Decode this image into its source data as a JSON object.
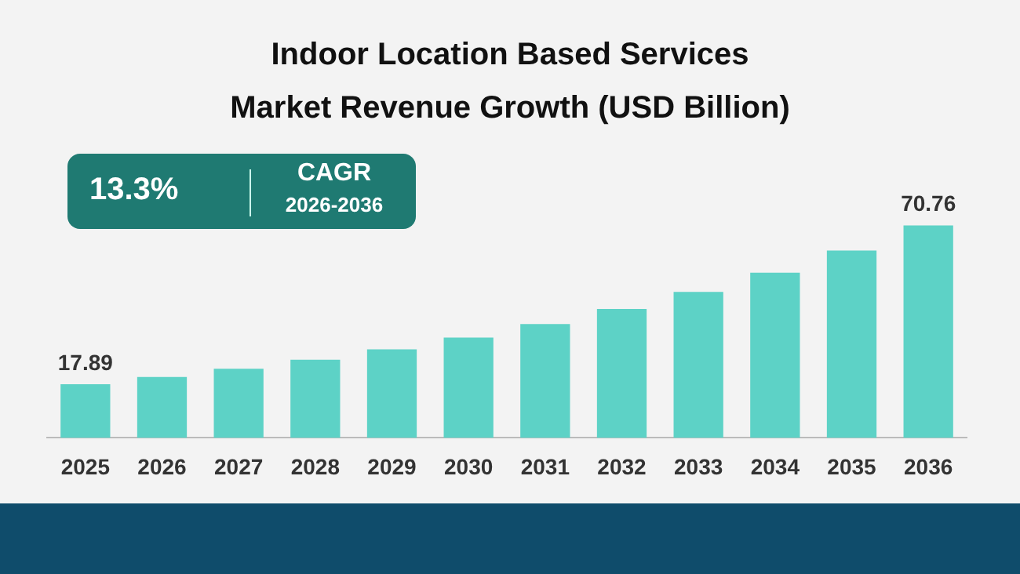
{
  "chart_data": {
    "type": "bar",
    "title": "Indoor Location Based Services Market Revenue Growth (USD Billion)",
    "categories": [
      "2025",
      "2026",
      "2027",
      "2028",
      "2029",
      "2030",
      "2031",
      "2032",
      "2033",
      "2034",
      "2035",
      "2036"
    ],
    "values": [
      17.89,
      20.3,
      23.0,
      26.0,
      29.5,
      33.4,
      37.9,
      42.9,
      48.6,
      55.0,
      62.4,
      70.76
    ],
    "value_labels": [
      "17.89",
      null,
      null,
      null,
      null,
      null,
      null,
      null,
      null,
      null,
      null,
      "70.76"
    ],
    "color": "#5dd2c6",
    "annotations": [
      "13.3%",
      "CAGR",
      "2026-2036"
    ]
  }
}
